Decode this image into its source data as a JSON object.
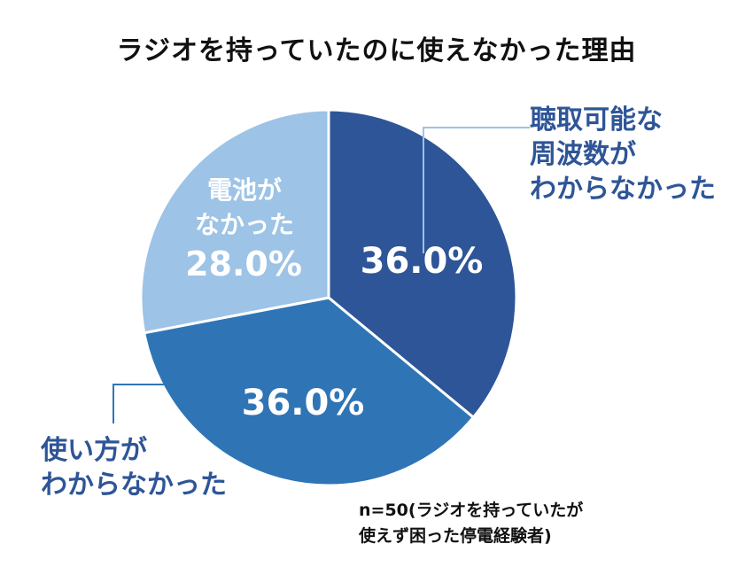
{
  "title": "ラジオを持っていたのに使えなかった理由",
  "note": {
    "line1": "n=50(ラジオを持っていたが",
    "line2": "使えず困った停電経験者)"
  },
  "chart_data": {
    "type": "pie",
    "unit": "%",
    "slices": [
      {
        "label_lines": [
          "聴取可能な",
          "周波数が",
          "わからなかった"
        ],
        "value": 36.0,
        "display": "36.0%",
        "color": "#2e5597"
      },
      {
        "label_lines": [
          "使い方が",
          "わからなかった"
        ],
        "value": 36.0,
        "display": "36.0%",
        "color": "#2f75b6"
      },
      {
        "label_lines": [
          "電池が",
          "なかった"
        ],
        "value": 28.0,
        "display": "28.0%",
        "color": "#9dc3e6"
      }
    ]
  }
}
